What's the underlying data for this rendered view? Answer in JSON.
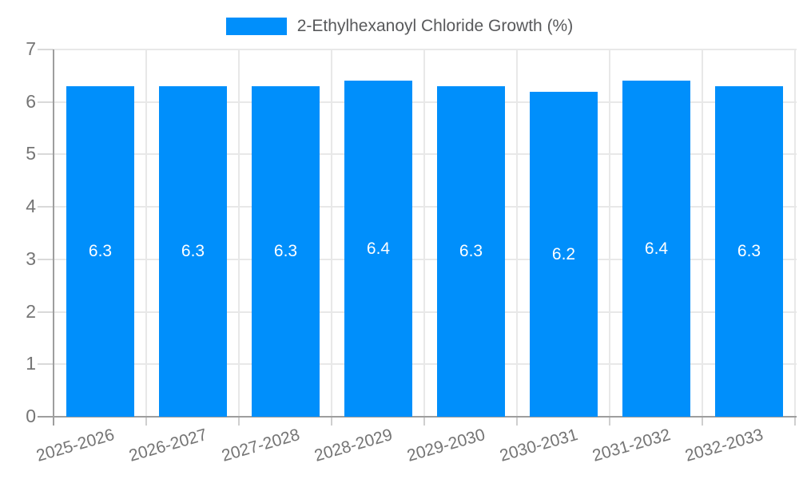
{
  "legend": {
    "label": "2-Ethylhexanoyl Chloride Growth (%)"
  },
  "chart_data": {
    "type": "bar",
    "title": "2-Ethylhexanoyl Chloride Growth (%)",
    "categories": [
      "2025-2026",
      "2026-2027",
      "2027-2028",
      "2028-2029",
      "2029-2030",
      "2030-2031",
      "2031-2032",
      "2032-2033"
    ],
    "values": [
      6.3,
      6.3,
      6.3,
      6.4,
      6.3,
      6.2,
      6.4,
      6.3
    ],
    "value_labels": [
      "6.3",
      "6.3",
      "6.3",
      "6.4",
      "6.3",
      "6.2",
      "6.4",
      "6.3"
    ],
    "y_ticks": [
      0,
      1,
      2,
      3,
      4,
      5,
      6,
      7
    ],
    "ylim": [
      0,
      7
    ],
    "xlabel": "",
    "ylabel": "",
    "grid": true,
    "legend_position": "top",
    "colors": {
      "bar": "#008ffb",
      "value_label": "#ffffff",
      "axis_label": "#757575",
      "legend_text": "#58595b",
      "gridline": "#e8e8e8",
      "axis_line": "#9e9e9e",
      "background": "#ffffff"
    }
  }
}
